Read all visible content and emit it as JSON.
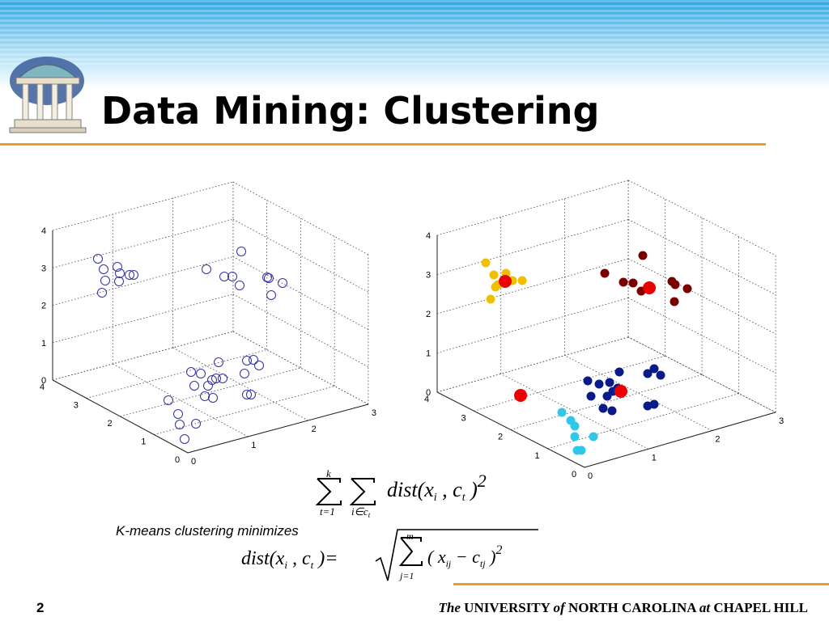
{
  "slide": {
    "title": "Data Mining: Clustering",
    "page_number": "2",
    "footer": [
      "The",
      " UNIVERSITY ",
      "of",
      " NORTH CAROLINA ",
      "at",
      " CHAPEL HILL"
    ]
  },
  "plots": [
    {
      "x_ticks": [
        0,
        1,
        2,
        3
      ],
      "y_ticks": [
        0,
        1,
        2,
        3,
        4
      ],
      "z_ticks": [
        0,
        1,
        2,
        3,
        4
      ]
    },
    {
      "x_ticks": [
        0,
        1,
        2,
        3
      ],
      "y_ticks": [
        0,
        1,
        2,
        3,
        4
      ],
      "z_ticks": [
        0,
        1,
        2,
        3,
        4
      ]
    }
  ],
  "formula1": {
    "upper": "k",
    "lower1": "t=1",
    "lower2": "i∈c",
    "lower2_sub": "t",
    "body": [
      "dist(",
      "x",
      "i",
      " , ",
      "c",
      "t",
      " )",
      "2"
    ]
  },
  "caption": "K-means clustering minimizes",
  "formula2": {
    "lhs": [
      "dist(",
      "x",
      "i",
      " , ",
      "c",
      "t",
      " )="
    ],
    "upper": "m",
    "lower": "j=1",
    "body": [
      "( ",
      "x",
      "ij",
      " − ",
      "c",
      "tj",
      " )",
      "2"
    ]
  }
}
